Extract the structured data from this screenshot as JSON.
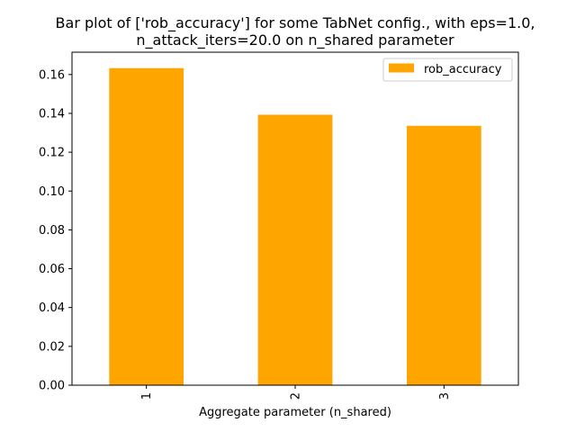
{
  "chart_data": {
    "type": "bar",
    "title_lines": [
      "Bar plot of ['rob_accuracy'] for some TabNet config., with eps=1.0,",
      "n_attack_iters=20.0 on n_shared parameter"
    ],
    "xlabel": "Aggregate parameter (n_shared)",
    "ylabel": "",
    "categories": [
      "1",
      "2",
      "3"
    ],
    "series": [
      {
        "name": "rob_accuracy",
        "color": "#ffa500",
        "values": [
          0.1633,
          0.1393,
          0.1336
        ]
      }
    ],
    "ylim": [
      0,
      0.1715
    ],
    "yticks": [
      0.0,
      0.02,
      0.04,
      0.06,
      0.08,
      0.1,
      0.12,
      0.14,
      0.16
    ],
    "ytick_labels": [
      "0.00",
      "0.02",
      "0.04",
      "0.06",
      "0.08",
      "0.10",
      "0.12",
      "0.14",
      "0.16"
    ],
    "xtick_rotation": "vertical",
    "legend": {
      "position": "top-right",
      "entries": [
        "rob_accuracy"
      ]
    },
    "grid": false
  }
}
